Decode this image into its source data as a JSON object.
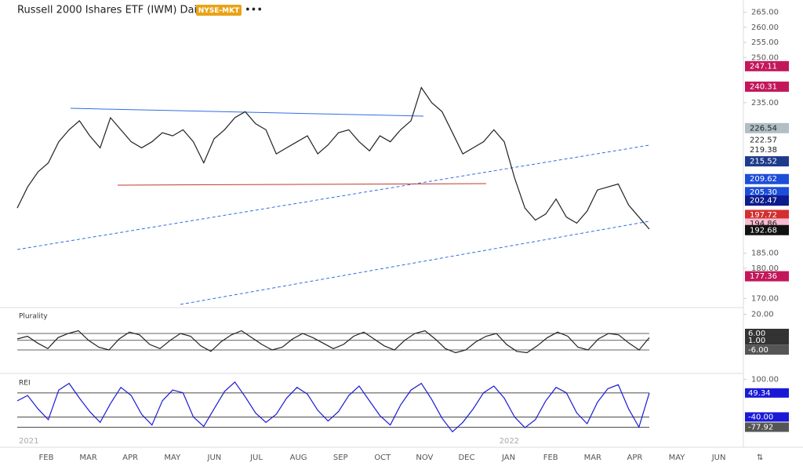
{
  "header": {
    "title": "Russell 2000 Ishares ETF (IWM) Daily",
    "exchange": "NYSE-MKT",
    "menu": "•••"
  },
  "x_labels": [
    "FEB",
    "MAR",
    "APR",
    "MAY",
    "JUN",
    "JUL",
    "AUG",
    "SEP",
    "OCT",
    "NOV",
    "DEC",
    "JAN",
    "FEB",
    "MAR",
    "APR",
    "MAY",
    "JUN"
  ],
  "year_labels": [
    "2021",
    "2022"
  ],
  "chart_data": [
    {
      "type": "line",
      "color": "#222222",
      "values": [
        200,
        207,
        212,
        215,
        222,
        226,
        229,
        224,
        220,
        230,
        226,
        222,
        220,
        222,
        225,
        224,
        226,
        222,
        215,
        223,
        226,
        230,
        232,
        228,
        226,
        218,
        220,
        222,
        224,
        218,
        221,
        225,
        226,
        222,
        219,
        224,
        222,
        226,
        229,
        240,
        235,
        232,
        225,
        218,
        220,
        222,
        226,
        222,
        210,
        200,
        196,
        198,
        203,
        197,
        195,
        199,
        206,
        207,
        208,
        201,
        197,
        193
      ],
      "ylim": [
        168,
        267
      ],
      "yticks": [
        {
          "value": 265,
          "label": "265.00"
        },
        {
          "value": 260,
          "label": "260.00"
        },
        {
          "value": 255,
          "label": "255.00"
        },
        {
          "value": 250,
          "label": "250.00"
        },
        {
          "value": 235,
          "label": "235.00"
        },
        {
          "value": 185,
          "label": "185.00"
        },
        {
          "value": 180,
          "label": "180.00"
        },
        {
          "value": 170,
          "label": "170.00"
        }
      ],
      "price_labels": [
        {
          "value": 247.11,
          "label": "247.11",
          "color": "#c2185b"
        },
        {
          "value": 240.31,
          "label": "240.31",
          "color": "#c2185b"
        },
        {
          "value": 226.54,
          "label": "226.54",
          "color": "#b0bec5"
        },
        {
          "value": 222.57,
          "label": "222.57",
          "color": "#ffffff"
        },
        {
          "value": 219.38,
          "label": "219.38",
          "color": "#ffffff"
        },
        {
          "value": 215.52,
          "label": "215.52",
          "color": "#1e3a8a"
        },
        {
          "value": 209.62,
          "label": "209.62",
          "color": "#1d4ed8"
        },
        {
          "value": 205.3,
          "label": "205.30",
          "color": "#1d4ed8"
        },
        {
          "value": 202.47,
          "label": "202.47",
          "color": "#0d1b8c"
        },
        {
          "value": 197.72,
          "label": "197.72",
          "color": "#d32f2f"
        },
        {
          "value": 194.86,
          "label": "194.86",
          "color": "#f8bbd0"
        },
        {
          "value": 192.68,
          "label": "192.68",
          "color": "#111111"
        },
        {
          "value": 177.36,
          "label": "177.36",
          "color": "#c2185b"
        }
      ]
    },
    {
      "type": "line",
      "title": "Plurality",
      "color": "#222222",
      "values": [
        2,
        4,
        -1,
        -5,
        3,
        6,
        8,
        1,
        -4,
        -6,
        2,
        7,
        5,
        -2,
        -5,
        1,
        6,
        4,
        -3,
        -7,
        0,
        5,
        8,
        3,
        -2,
        -6,
        -4,
        2,
        6,
        3,
        -1,
        -5,
        -2,
        4,
        7,
        2,
        -3,
        -6,
        1,
        6,
        8,
        2,
        -5,
        -8,
        -6,
        0,
        4,
        6,
        -2,
        -7,
        -8,
        -3,
        3,
        7,
        4,
        -4,
        -6,
        2,
        6,
        5,
        -1,
        -6,
        3
      ],
      "ylim": [
        -14,
        22
      ],
      "yticks": [
        {
          "value": 20,
          "label": "20.00"
        }
      ],
      "levels": [
        {
          "value": 6,
          "label": "6.00"
        },
        {
          "value": 1,
          "label": "1.00"
        },
        {
          "value": -6,
          "label": "-6.00"
        }
      ]
    },
    {
      "type": "line",
      "title": "REI",
      "color": "#1a1ad6",
      "values": [
        20,
        40,
        -10,
        -50,
        60,
        85,
        30,
        -20,
        -60,
        10,
        70,
        40,
        -30,
        -70,
        20,
        60,
        50,
        -40,
        -75,
        -10,
        55,
        90,
        35,
        -25,
        -60,
        -30,
        30,
        70,
        45,
        -15,
        -55,
        -20,
        40,
        75,
        20,
        -35,
        -70,
        5,
        60,
        85,
        25,
        -45,
        -95,
        -60,
        -10,
        50,
        75,
        30,
        -40,
        -80,
        -50,
        20,
        70,
        50,
        -25,
        -65,
        15,
        65,
        80,
        -10,
        -77.92,
        49.34
      ],
      "ylim": [
        -100,
        110
      ],
      "yticks": [
        {
          "value": 100,
          "label": "100.00"
        }
      ],
      "levels": [
        {
          "value": 49.34,
          "label": "49.34"
        },
        {
          "value": -40,
          "label": "-40.00"
        },
        {
          "value": -77.92,
          "label": "-77.92"
        }
      ]
    }
  ]
}
